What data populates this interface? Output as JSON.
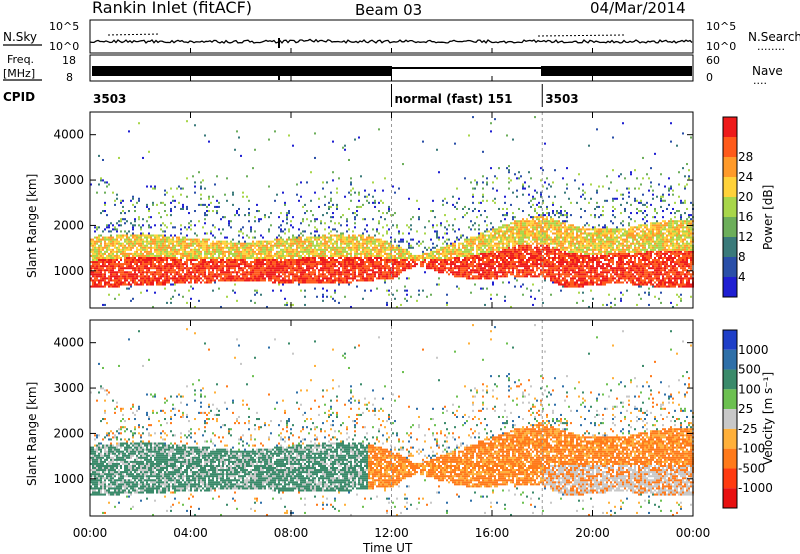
{
  "header": {
    "station": "Rankin Inlet (fitACF)",
    "beam": "Beam 03",
    "date": "04/Mar/2014"
  },
  "top_panels": {
    "nsky_label": "N.Sky",
    "nsky_ticks": [
      "10^5",
      "10^0"
    ],
    "nsearch_label": "N.Search",
    "nsearch_ticks": [
      "10^5",
      "10^0"
    ],
    "nsearch_legend": "........",
    "freq_label": "Freq.",
    "freq_unit": "[MHz]",
    "freq_ticks": [
      "18",
      "8"
    ],
    "nave_label": "Nave",
    "nave_ticks": [
      "60",
      "0"
    ],
    "nave_legend": "....",
    "cpid_label": "CPID",
    "cpid_segments": [
      {
        "label": "3503",
        "start_h": 0,
        "end_h": 12
      },
      {
        "label": "normal (fast) 151",
        "start_h": 12,
        "end_h": 18
      },
      {
        "label": "3503",
        "start_h": 18,
        "end_h": 24
      }
    ]
  },
  "x_axis": {
    "label": "Time UT",
    "ticks": [
      "00:00",
      "04:00",
      "08:00",
      "12:00",
      "16:00",
      "20:00",
      "00:00"
    ],
    "range_h": [
      0,
      24
    ]
  },
  "power_panel": {
    "ylabel": "Slant Range [km]",
    "yticks": [
      "1000",
      "2000",
      "3000",
      "4000"
    ],
    "colorbar_label": "Power [dB]",
    "colorbar_ticks": [
      "4",
      "8",
      "12",
      "16",
      "20",
      "24",
      "28"
    ],
    "colors": [
      "#1f1fd2",
      "#2a4fa8",
      "#3a7a7a",
      "#6cae5a",
      "#a8d64a",
      "#ffd23a",
      "#ff9a2a",
      "#ff5a1a",
      "#ee1a1a"
    ]
  },
  "velocity_panel": {
    "ylabel": "Slant Range [km]",
    "yticks": [
      "1000",
      "2000",
      "3000",
      "4000"
    ],
    "colorbar_label": "Velocity [m s⁻¹]",
    "colorbar_ticks": [
      "1000",
      "500",
      "100",
      "25",
      "-25",
      "-100",
      "-500",
      "-1000"
    ],
    "colors": [
      "#1f3fc8",
      "#2e6fa8",
      "#3a8a6a",
      "#6cc050",
      "#c8c8c8",
      "#ffb03a",
      "#ff7a1a",
      "#ff3a10",
      "#e81010"
    ]
  },
  "chart_data": {
    "type": "heatmap",
    "x_range_h": [
      0,
      24
    ],
    "y_range_km": [
      180,
      4500
    ],
    "echo_band": {
      "hours": [
        0,
        2,
        4,
        6,
        8,
        10,
        11,
        12,
        13,
        14,
        15,
        16,
        17,
        18,
        19,
        20,
        21,
        22,
        23,
        24
      ],
      "lower_km": [
        600,
        650,
        700,
        750,
        700,
        700,
        750,
        800,
        1100,
        900,
        800,
        800,
        850,
        800,
        600,
        650,
        700,
        650,
        600,
        600
      ],
      "upper_km": [
        1700,
        1800,
        1700,
        1600,
        1700,
        1800,
        1750,
        1600,
        1300,
        1500,
        1700,
        1900,
        2100,
        2200,
        2000,
        1900,
        1900,
        2000,
        2100,
        2100
      ]
    }
  }
}
